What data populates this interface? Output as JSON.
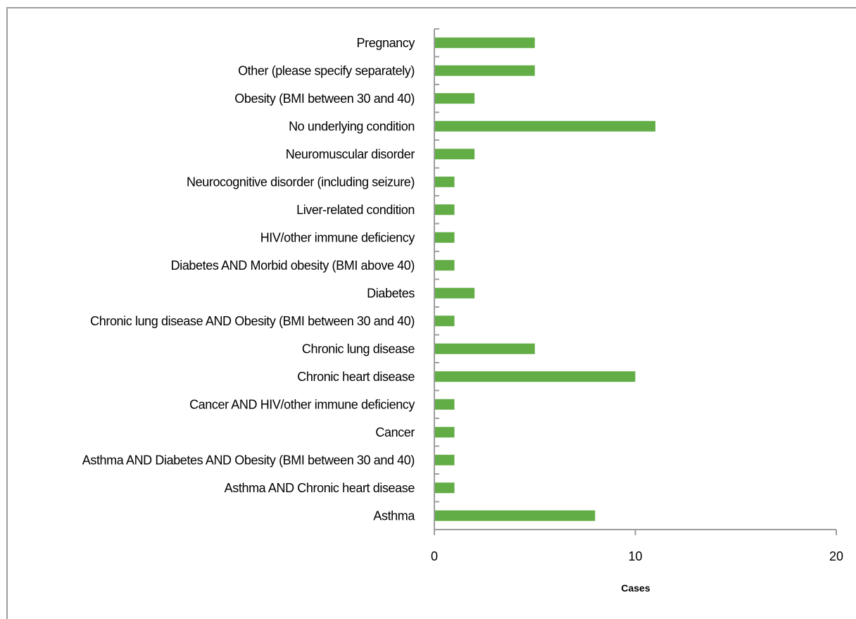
{
  "chart_data": {
    "type": "bar",
    "orientation": "horizontal",
    "categories": [
      "Asthma",
      "Asthma AND Chronic heart disease",
      "Asthma AND Diabetes AND Obesity (BMI between 30 and 40)",
      "Cancer",
      "Cancer AND HIV/other immune deficiency",
      "Chronic heart disease",
      "Chronic lung disease",
      "Chronic lung disease AND Obesity (BMI between 30 and 40)",
      "Diabetes",
      "Diabetes AND Morbid obesity (BMI above 40)",
      "HIV/other immune deficiency",
      "Liver-related condition",
      "Neurocognitive disorder (including seizure)",
      "Neuromuscular disorder",
      "No underlying condition",
      "Obesity (BMI between 30 and 40)",
      "Other (please specify separately)",
      "Pregnancy"
    ],
    "values": [
      8,
      1,
      1,
      1,
      1,
      10,
      5,
      1,
      2,
      1,
      1,
      1,
      1,
      2,
      11,
      2,
      5,
      5
    ],
    "xlabel": "Cases",
    "ylabel": "",
    "xlim": [
      0,
      20
    ],
    "xticks": [
      "0",
      "10",
      "20"
    ],
    "grid": false,
    "legend": "none",
    "bar_color": "#62ad46",
    "axis_color": "#9e9e9e"
  }
}
